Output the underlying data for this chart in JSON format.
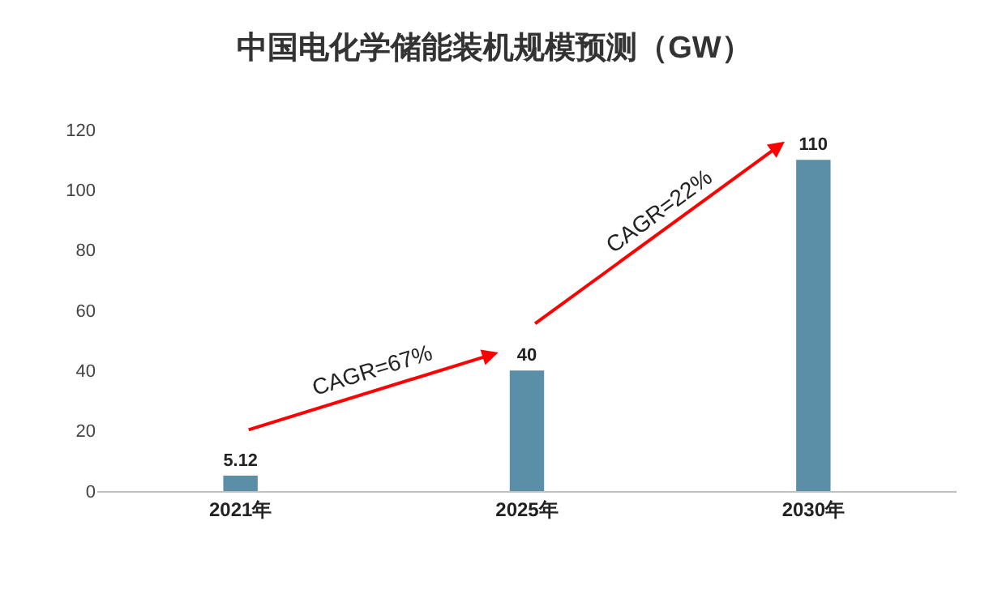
{
  "chart_data": {
    "type": "bar",
    "title": "中国电化学储能装机规模预测（GW）",
    "categories": [
      "2021年",
      "2025年",
      "2030年"
    ],
    "values": [
      5.12,
      40,
      110
    ],
    "color": "#5b8fa8",
    "data_labels": true,
    "ylim": [
      0,
      120
    ],
    "yticks": [
      0,
      20,
      40,
      60,
      80,
      100,
      120
    ],
    "grid": false,
    "annotations": [
      "CAGR=67%",
      "CAGR=22%"
    ]
  }
}
